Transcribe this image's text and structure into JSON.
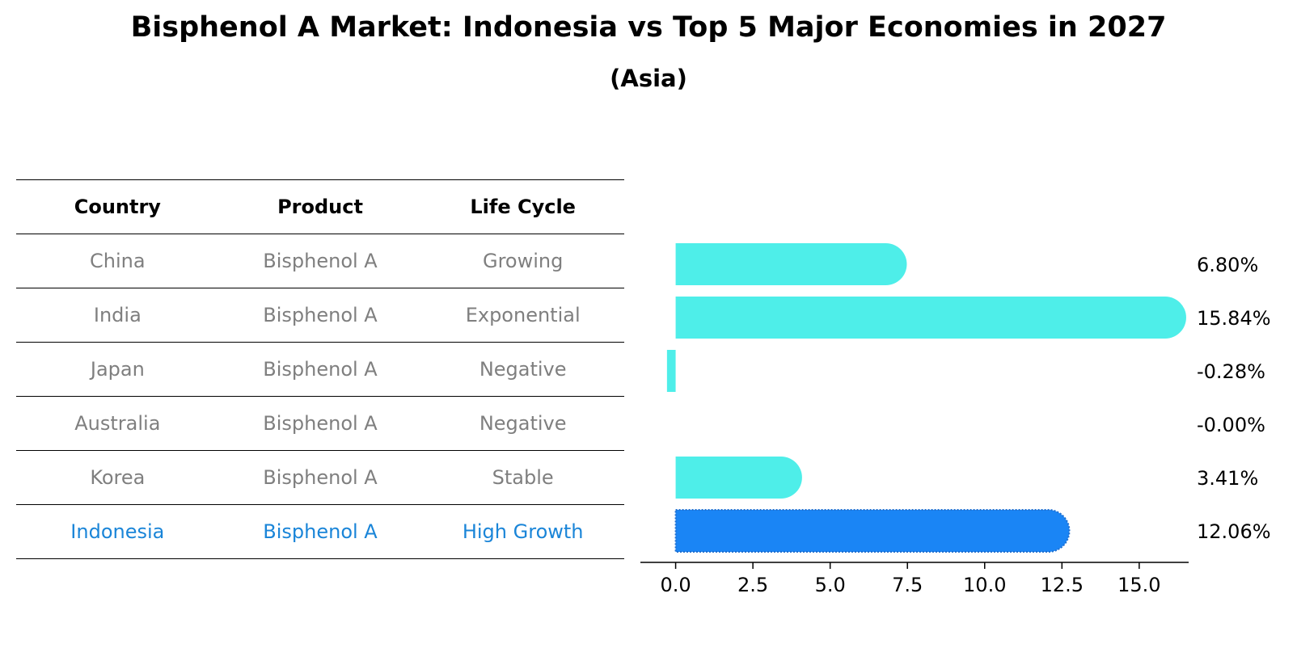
{
  "title": "Bisphenol A Market: Indonesia vs Top 5 Major Economies in 2027",
  "subtitle": "(Asia)",
  "table": {
    "headers": [
      "Country",
      "Product",
      "Life Cycle"
    ],
    "rows": [
      {
        "country": "China",
        "product": "Bisphenol A",
        "life_cycle": "Growing"
      },
      {
        "country": "India",
        "product": "Bisphenol A",
        "life_cycle": "Exponential"
      },
      {
        "country": "Japan",
        "product": "Bisphenol A",
        "life_cycle": "Negative"
      },
      {
        "country": "Australia",
        "product": "Bisphenol A",
        "life_cycle": "Negative"
      },
      {
        "country": "Korea",
        "product": "Bisphenol A",
        "life_cycle": "Stable"
      },
      {
        "country": "Indonesia",
        "product": "Bisphenol A",
        "life_cycle": "High Growth"
      }
    ]
  },
  "chart_data": {
    "type": "bar",
    "orientation": "horizontal",
    "title": "Bisphenol A Market: Indonesia vs Top 5 Major Economies in 2027",
    "subtitle": "(Asia)",
    "categories": [
      "China",
      "India",
      "Japan",
      "Australia",
      "Korea",
      "Indonesia"
    ],
    "values": [
      6.8,
      15.84,
      -0.28,
      -0.0,
      3.41,
      12.06
    ],
    "value_labels": [
      "6.80%",
      "15.84%",
      "-0.28%",
      "-0.00%",
      "3.41%",
      "12.06%"
    ],
    "highlight": "Indonesia",
    "xlim": [
      -1.14,
      16.6
    ],
    "xticks": [
      0.0,
      2.5,
      5.0,
      7.5,
      10.0,
      12.5,
      15.0
    ],
    "xtick_labels": [
      "0.0",
      "2.5",
      "5.0",
      "7.5",
      "10.0",
      "12.5",
      "15.0"
    ],
    "colors": {
      "default": "#4eeee9",
      "highlight": "#1a85f5"
    }
  }
}
